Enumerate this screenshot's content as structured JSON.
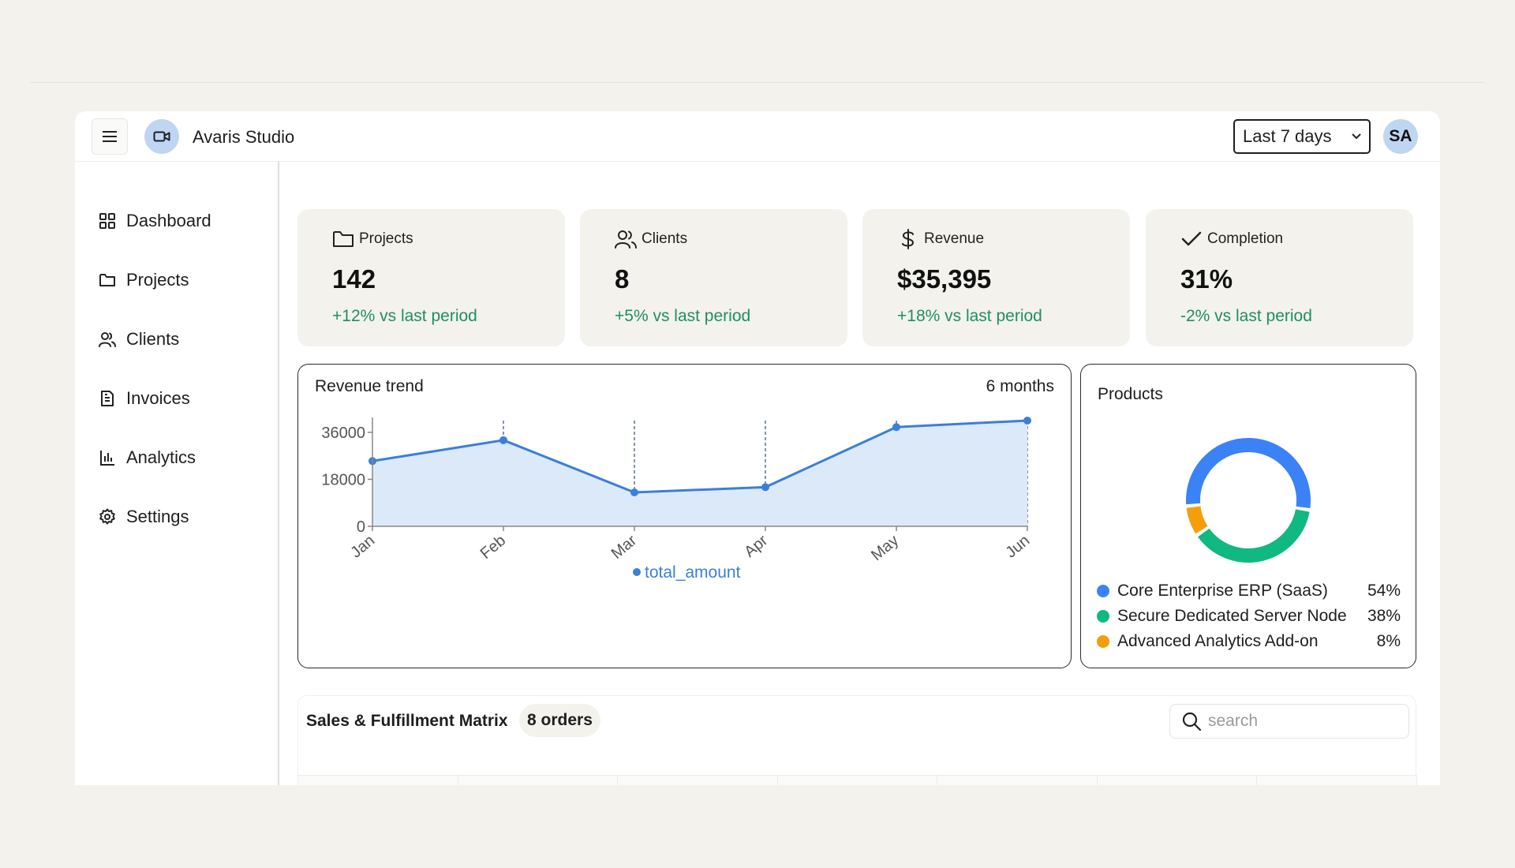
{
  "app": {
    "name": "Avaris Studio"
  },
  "header": {
    "range_selected": "Last 7 days",
    "range_options": [
      "Last 7 days"
    ],
    "avatar_initials": "SA"
  },
  "sidebar": {
    "items": [
      {
        "label": "Dashboard",
        "icon": "grid-icon"
      },
      {
        "label": "Projects",
        "icon": "folder-icon"
      },
      {
        "label": "Clients",
        "icon": "users-icon"
      },
      {
        "label": "Invoices",
        "icon": "document-icon"
      },
      {
        "label": "Analytics",
        "icon": "bar-chart-icon"
      },
      {
        "label": "Settings",
        "icon": "gear-icon"
      }
    ]
  },
  "kpis": [
    {
      "label": "Projects",
      "value": "142",
      "delta": "+12% vs last period",
      "icon": "folder-icon"
    },
    {
      "label": "Clients",
      "value": "8",
      "delta": "+5% vs last period",
      "icon": "users-icon"
    },
    {
      "label": "Revenue",
      "value": "$35,395",
      "delta": "+18% vs last period",
      "icon": "dollar-icon"
    },
    {
      "label": "Completion",
      "value": "31%",
      "delta": "-2% vs last period",
      "icon": "check-icon"
    }
  ],
  "revenue_trend": {
    "title": "Revenue trend",
    "range_label": "6 months"
  },
  "products": {
    "title": "Products",
    "items": [
      {
        "name": "Core Enterprise ERP (SaaS)",
        "pct": "54%",
        "color": "#3b82f6"
      },
      {
        "name": "Secure Dedicated Server Node",
        "pct": "38%",
        "color": "#10b981"
      },
      {
        "name": "Advanced Analytics Add-on",
        "pct": "8%",
        "color": "#f59e0b"
      }
    ]
  },
  "table": {
    "title": "Sales & Fulfillment Matrix",
    "badge": "8 orders",
    "search_placeholder": "search"
  },
  "chart_data": [
    {
      "type": "area",
      "title": "",
      "categories": [
        "Jan",
        "Feb",
        "Mar",
        "Apr",
        "May",
        "Jun"
      ],
      "series": [
        {
          "name": "total_amount",
          "values": [
            25000,
            33000,
            13000,
            15000,
            38000,
            40500
          ],
          "color": "#3b7fd9"
        }
      ],
      "ylim": [
        0,
        40500
      ],
      "yticks": [
        "0",
        "18000",
        "36000"
      ],
      "grid": "vertical dashed"
    },
    {
      "type": "pie",
      "title": "",
      "categories": [
        "Core Enterprise ERP (SaaS)",
        "Secure Dedicated Server Node",
        "Advanced Analytics Add-on"
      ],
      "values": [
        54,
        38,
        8
      ],
      "colors": [
        "#3b82f6",
        "#10b981",
        "#f59e0b"
      ],
      "donut": true
    }
  ]
}
